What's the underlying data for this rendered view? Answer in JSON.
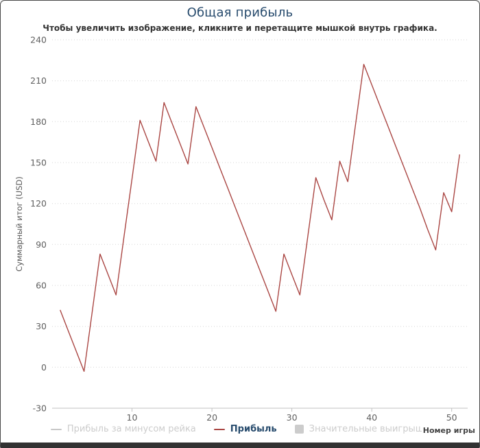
{
  "header": {
    "title": "Общая прибыль",
    "subtitle": "Чтобы увеличить изображение, кликните и перетащите мышкой внутрь графика."
  },
  "chart_data": {
    "type": "line",
    "title": "Общая прибыль",
    "subtitle": "Чтобы увеличить изображение, кликните и перетащите мышкой внутрь графика.",
    "xlabel": "Номер игры",
    "ylabel": "Суммарный итог (USD)",
    "xlim": [
      0,
      52
    ],
    "ylim": [
      -30,
      240
    ],
    "x_ticks": [
      10,
      20,
      30,
      40,
      50
    ],
    "y_ticks": [
      240,
      210,
      180,
      150,
      120,
      90,
      60,
      30,
      0,
      -30
    ],
    "grid": "dotted horizontal gridlines",
    "legend_position": "bottom",
    "series": [
      {
        "name": "Прибыль за минусом рейка",
        "visible": false,
        "color": "#c8c8c8",
        "marker": "line",
        "values": []
      },
      {
        "name": "Прибыль",
        "visible": true,
        "color": "#AA4643",
        "marker": "line",
        "x_start": 1,
        "values": [
          42,
          27,
          12,
          -3,
          40,
          83,
          68,
          53,
          96,
          138,
          181,
          166,
          151,
          194,
          179,
          164,
          149,
          191,
          176,
          161,
          146,
          131,
          116,
          101,
          86,
          71,
          56,
          41,
          83,
          68,
          53,
          96,
          139,
          123,
          108,
          151,
          136,
          179,
          222,
          207,
          192,
          177,
          162,
          147,
          132,
          117,
          101,
          86,
          128,
          114,
          156
        ]
      },
      {
        "name": "Значительные выигрыши",
        "visible": false,
        "color": "#cccccc",
        "marker": "square",
        "values": []
      }
    ]
  },
  "colors": {
    "title": "#274b6d",
    "subtitle": "#333333",
    "axis_label": "#606060",
    "axis_title": "#5a5a5a",
    "grid_line": "#d6d6d6",
    "axis_line": "#c0c0c0",
    "series_line": "#AA4643",
    "legend_active": "#274b6d",
    "legend_disabled": "#cccccc"
  }
}
